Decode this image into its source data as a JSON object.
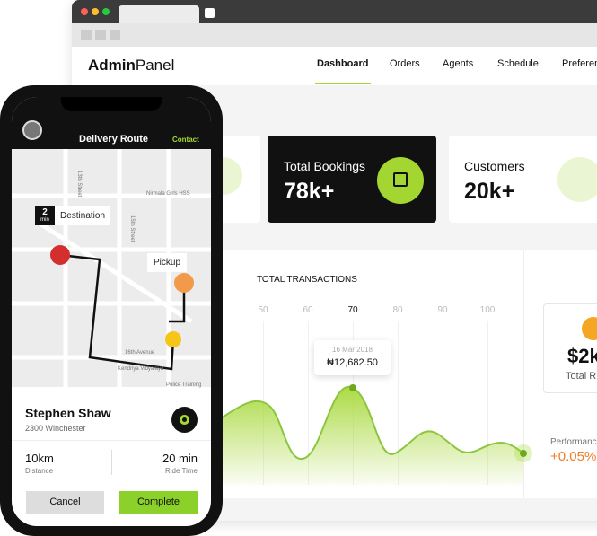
{
  "browser": {
    "brand": {
      "bold": "Admin",
      "light": "Panel"
    },
    "nav": [
      "Dashboard",
      "Orders",
      "Agents",
      "Schedule",
      "Preferenc"
    ]
  },
  "stats": [
    {
      "label": "Total Bookings",
      "value": "78k+"
    },
    {
      "label": "Customers",
      "value": "20k+"
    }
  ],
  "transactions": {
    "title": "TOTAL TRANSACTIONS",
    "x_labels": [
      50,
      60,
      70,
      80,
      90,
      100
    ],
    "tooltip": {
      "date": "16 Mar 2018",
      "amount": "₦12,682.50"
    }
  },
  "side": {
    "value": "$2k",
    "label": "Total R"
  },
  "performance": {
    "label": "Performanc",
    "value": "+0.05%"
  },
  "phone": {
    "title": "Delivery Route",
    "contact": "Contact",
    "map": {
      "destination": "Destination",
      "eta_value": 2,
      "eta_unit": "min",
      "pickup": "Pickup",
      "streets": [
        "13th Street",
        "Nirmala Girls HSS",
        "15th Street",
        "16th Avenue",
        "Kendriya Vidyalaya",
        "Police Training"
      ]
    },
    "driver": {
      "name": "Stephen Shaw",
      "address": "2300 Winchester"
    },
    "trip": {
      "distance": "10km",
      "distance_label": "Distance",
      "time": "20 min",
      "time_label": "Ride Time"
    },
    "buttons": {
      "cancel": "Cancel",
      "complete": "Complete"
    }
  }
}
